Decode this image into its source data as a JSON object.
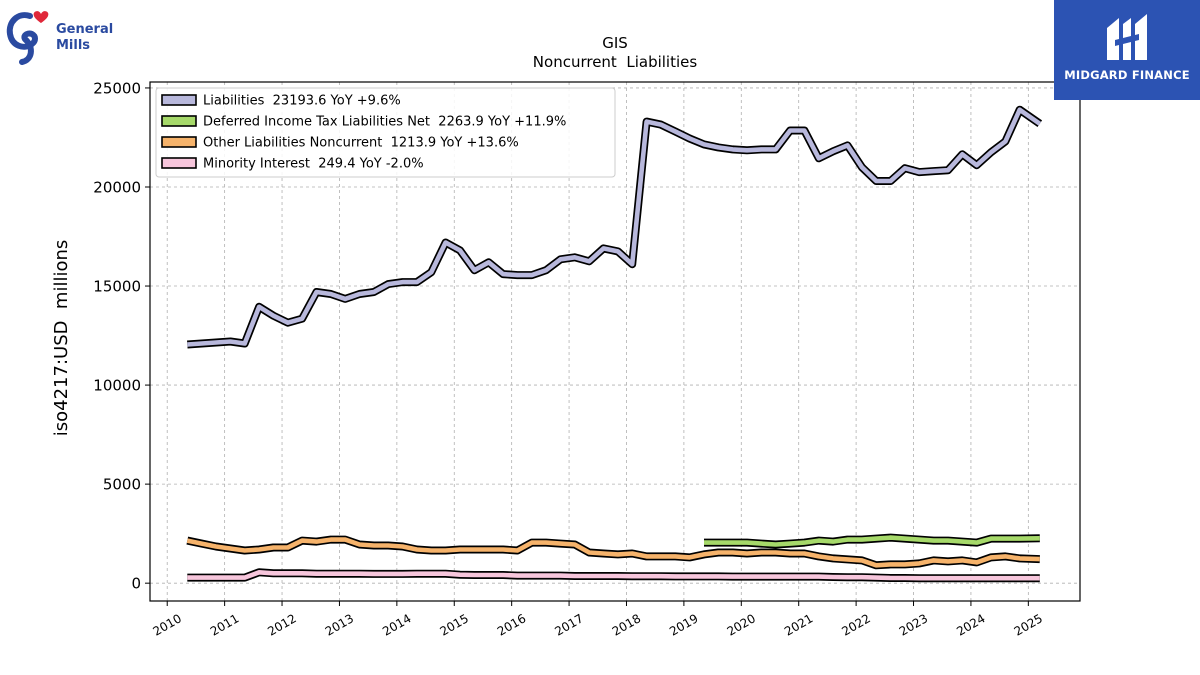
{
  "branding": {
    "company_logo_icon": "general-mills-g-heart-logo",
    "company_logo_line1": "General",
    "company_logo_line2": "Mills",
    "partner_logo_icon": "midgard-finance-mark",
    "partner_name": "MIDGARD FINANCE",
    "partner_color": "#2c53b3"
  },
  "chart_data": {
    "type": "line",
    "title": "GIS",
    "subtitle": "Noncurrent  Liabilities",
    "ylabel": "iso4217:USD  millions",
    "xlabel": "",
    "xlim": [
      2009.7,
      2025.9
    ],
    "ylim": [
      -900,
      25300
    ],
    "xticks": [
      2010,
      2011,
      2012,
      2013,
      2014,
      2015,
      2016,
      2017,
      2018,
      2019,
      2020,
      2021,
      2022,
      2023,
      2024,
      2025
    ],
    "yticks": [
      0,
      5000,
      10000,
      15000,
      20000,
      25000
    ],
    "grid": true,
    "legend_position": "top-left",
    "series": [
      {
        "name": "Liabilities",
        "legend_label": "Liabilities  23193.6 YoY +9.6%",
        "color": "#b8b8dc",
        "x": [
          2010.35,
          2010.6,
          2010.85,
          2011.1,
          2011.35,
          2011.6,
          2011.85,
          2012.1,
          2012.35,
          2012.6,
          2012.85,
          2013.1,
          2013.35,
          2013.6,
          2013.85,
          2014.1,
          2014.35,
          2014.6,
          2014.85,
          2015.1,
          2015.35,
          2015.6,
          2015.85,
          2016.1,
          2016.35,
          2016.6,
          2016.85,
          2017.1,
          2017.35,
          2017.6,
          2017.85,
          2018.1,
          2018.35,
          2018.6,
          2018.85,
          2019.1,
          2019.35,
          2019.6,
          2019.85,
          2020.1,
          2020.35,
          2020.6,
          2020.85,
          2021.1,
          2021.35,
          2021.6,
          2021.85,
          2022.1,
          2022.35,
          2022.6,
          2022.85,
          2023.1,
          2023.35,
          2023.6,
          2023.85,
          2024.1,
          2024.35,
          2024.6,
          2024.85,
          2025.2
        ],
        "values": [
          12050,
          12100,
          12150,
          12200,
          12100,
          13950,
          13500,
          13150,
          13350,
          14700,
          14600,
          14350,
          14600,
          14700,
          15100,
          15200,
          15200,
          15700,
          17200,
          16800,
          15800,
          16200,
          15600,
          15550,
          15550,
          15800,
          16350,
          16450,
          16250,
          16900,
          16750,
          16100,
          23300,
          23150,
          22800,
          22450,
          22150,
          22000,
          21900,
          21850,
          21900,
          21900,
          22850,
          22850,
          21450,
          21800,
          22100,
          21000,
          20300,
          20300,
          20950,
          20750,
          20800,
          20850,
          21650,
          21100,
          21750,
          22300,
          23900,
          23193.6
        ]
      },
      {
        "name": "Deferred Income Tax Liabilities Net",
        "legend_label": "Deferred Income Tax Liabilities Net  2263.9 YoY +11.9%",
        "color": "#a6d96a",
        "x": [
          2019.35,
          2019.6,
          2019.85,
          2020.1,
          2020.35,
          2020.6,
          2020.85,
          2021.1,
          2021.35,
          2021.6,
          2021.85,
          2022.1,
          2022.35,
          2022.6,
          2022.85,
          2023.1,
          2023.35,
          2023.6,
          2023.85,
          2024.1,
          2024.35,
          2024.6,
          2024.85,
          2025.2
        ],
        "values": [
          2050,
          2050,
          2050,
          2050,
          2000,
          1950,
          2000,
          2050,
          2150,
          2100,
          2200,
          2200,
          2250,
          2300,
          2250,
          2200,
          2150,
          2150,
          2100,
          2050,
          2250,
          2250,
          2250,
          2263.9
        ]
      },
      {
        "name": "Other Liabilities Noncurrent",
        "legend_label": "Other Liabilities Noncurrent  1213.9 YoY +13.6%",
        "color": "#f6b36b",
        "x": [
          2010.35,
          2010.6,
          2010.85,
          2011.1,
          2011.35,
          2011.6,
          2011.85,
          2012.1,
          2012.35,
          2012.6,
          2012.85,
          2013.1,
          2013.35,
          2013.6,
          2013.85,
          2014.1,
          2014.35,
          2014.6,
          2014.85,
          2015.1,
          2015.35,
          2015.6,
          2015.85,
          2016.1,
          2016.35,
          2016.6,
          2016.85,
          2017.1,
          2017.35,
          2017.6,
          2017.85,
          2018.1,
          2018.35,
          2018.6,
          2018.85,
          2019.1,
          2019.35,
          2019.6,
          2019.85,
          2020.1,
          2020.35,
          2020.6,
          2020.85,
          2021.1,
          2021.35,
          2021.6,
          2021.85,
          2022.1,
          2022.35,
          2022.6,
          2022.85,
          2023.1,
          2023.35,
          2023.6,
          2023.85,
          2024.1,
          2024.35,
          2024.6,
          2024.85,
          2025.2
        ],
        "values": [
          2150,
          2000,
          1850,
          1750,
          1650,
          1700,
          1800,
          1800,
          2150,
          2100,
          2200,
          2200,
          1950,
          1900,
          1900,
          1850,
          1700,
          1650,
          1650,
          1700,
          1700,
          1700,
          1700,
          1650,
          2050,
          2050,
          2000,
          1950,
          1550,
          1500,
          1450,
          1500,
          1350,
          1350,
          1350,
          1300,
          1450,
          1550,
          1550,
          1500,
          1550,
          1550,
          1500,
          1500,
          1350,
          1250,
          1200,
          1150,
          900,
          950,
          950,
          1000,
          1150,
          1100,
          1150,
          1050,
          1300,
          1350,
          1250,
          1213.9
        ]
      },
      {
        "name": "Minority Interest",
        "legend_label": "Minority Interest  249.4 YoY -2.0%",
        "color": "#f7c6dc",
        "x": [
          2010.35,
          2010.6,
          2010.85,
          2011.1,
          2011.35,
          2011.6,
          2011.85,
          2012.1,
          2012.35,
          2012.6,
          2012.85,
          2013.1,
          2013.35,
          2013.6,
          2013.85,
          2014.1,
          2014.35,
          2014.6,
          2014.85,
          2015.1,
          2015.35,
          2015.6,
          2015.85,
          2016.1,
          2016.35,
          2016.6,
          2016.85,
          2017.1,
          2017.35,
          2017.6,
          2017.85,
          2018.1,
          2018.35,
          2018.6,
          2018.85,
          2019.1,
          2019.35,
          2019.6,
          2019.85,
          2020.1,
          2020.35,
          2020.6,
          2020.85,
          2021.1,
          2021.35,
          2021.6,
          2021.85,
          2022.1,
          2022.35,
          2022.6,
          2022.85,
          2023.1,
          2023.35,
          2023.6,
          2023.85,
          2024.1,
          2024.35,
          2024.6,
          2024.85,
          2025.2
        ],
        "values": [
          280,
          280,
          280,
          280,
          280,
          550,
          500,
          500,
          500,
          480,
          480,
          480,
          480,
          470,
          470,
          470,
          480,
          480,
          480,
          430,
          410,
          410,
          410,
          380,
          380,
          380,
          380,
          360,
          360,
          360,
          360,
          350,
          350,
          350,
          340,
          340,
          340,
          340,
          330,
          330,
          330,
          330,
          330,
          330,
          330,
          310,
          300,
          300,
          280,
          260,
          260,
          250,
          250,
          250,
          250,
          250,
          250,
          250,
          250,
          249.4
        ]
      }
    ]
  }
}
